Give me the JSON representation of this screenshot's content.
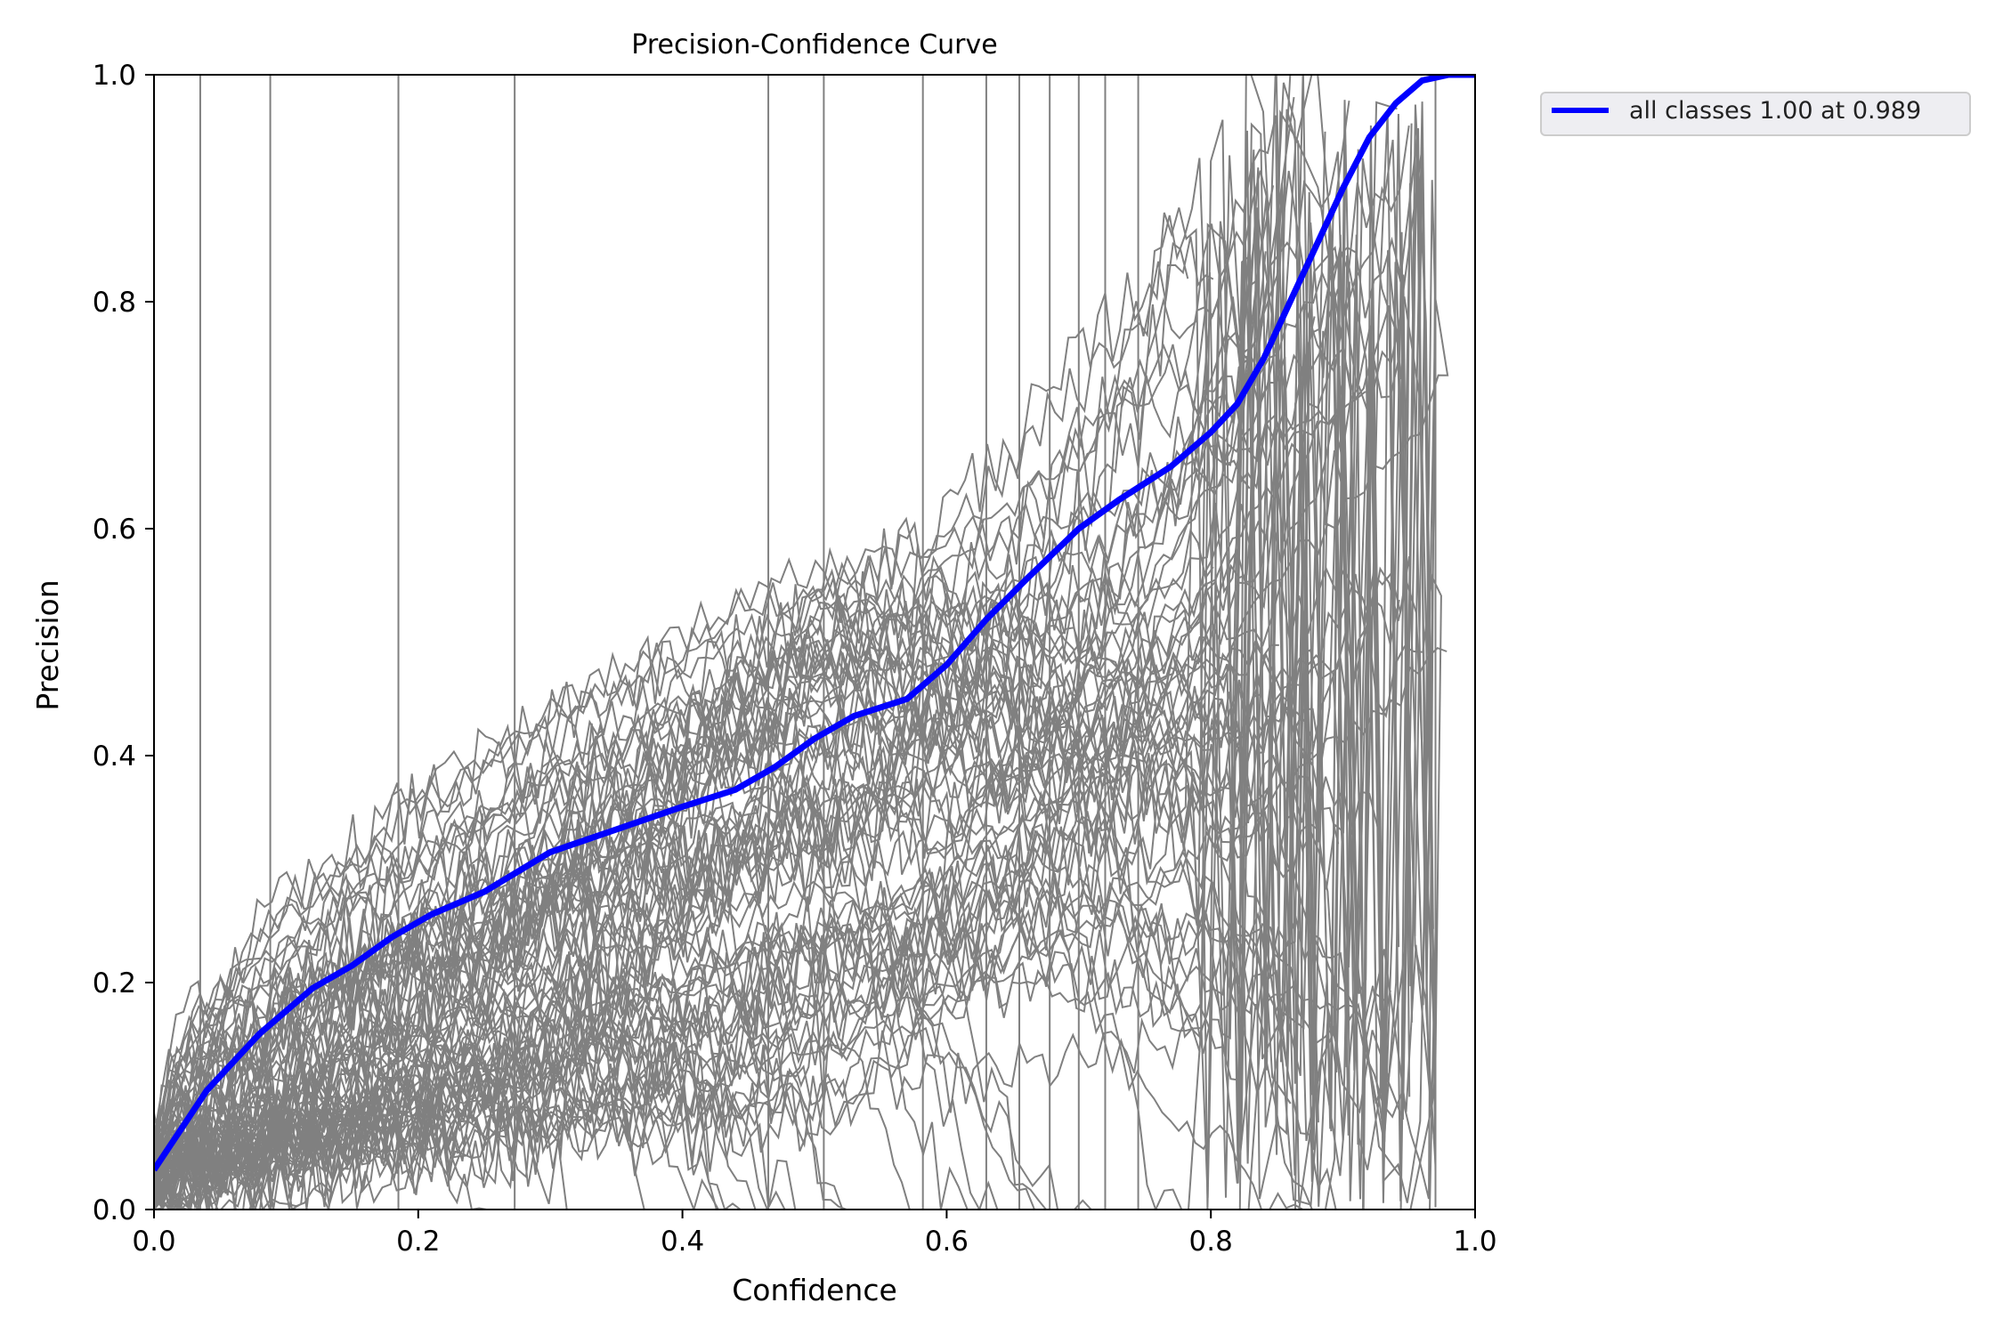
{
  "chart_data": {
    "type": "line",
    "title": "Precision-Confidence Curve",
    "xlabel": "Confidence",
    "ylabel": "Precision",
    "xlim": [
      0.0,
      1.0
    ],
    "ylim": [
      0.0,
      1.0
    ],
    "xticks": [
      "0.0",
      "0.2",
      "0.4",
      "0.6",
      "0.8",
      "1.0"
    ],
    "yticks": [
      "0.0",
      "0.2",
      "0.4",
      "0.6",
      "0.8",
      "1.0"
    ],
    "grid": false,
    "legend_position": "outside-top-right",
    "colors": {
      "all_classes": "#0000ff",
      "per_class": "#808080"
    },
    "series": [
      {
        "name": "all classes 1.00 at 0.989",
        "x": [
          0.0,
          0.02,
          0.04,
          0.06,
          0.08,
          0.1,
          0.12,
          0.15,
          0.18,
          0.21,
          0.25,
          0.3,
          0.35,
          0.4,
          0.44,
          0.47,
          0.5,
          0.53,
          0.57,
          0.6,
          0.63,
          0.66,
          0.7,
          0.73,
          0.77,
          0.8,
          0.82,
          0.84,
          0.86,
          0.88,
          0.9,
          0.92,
          0.94,
          0.96,
          0.98,
          1.0
        ],
        "y": [
          0.035,
          0.07,
          0.105,
          0.13,
          0.155,
          0.175,
          0.195,
          0.215,
          0.24,
          0.26,
          0.28,
          0.315,
          0.335,
          0.355,
          0.37,
          0.39,
          0.415,
          0.435,
          0.45,
          0.48,
          0.52,
          0.555,
          0.6,
          0.625,
          0.655,
          0.685,
          0.71,
          0.75,
          0.8,
          0.85,
          0.9,
          0.945,
          0.975,
          0.995,
          1.0,
          1.0
        ]
      }
    ],
    "per_class_curves_count": 80
  }
}
